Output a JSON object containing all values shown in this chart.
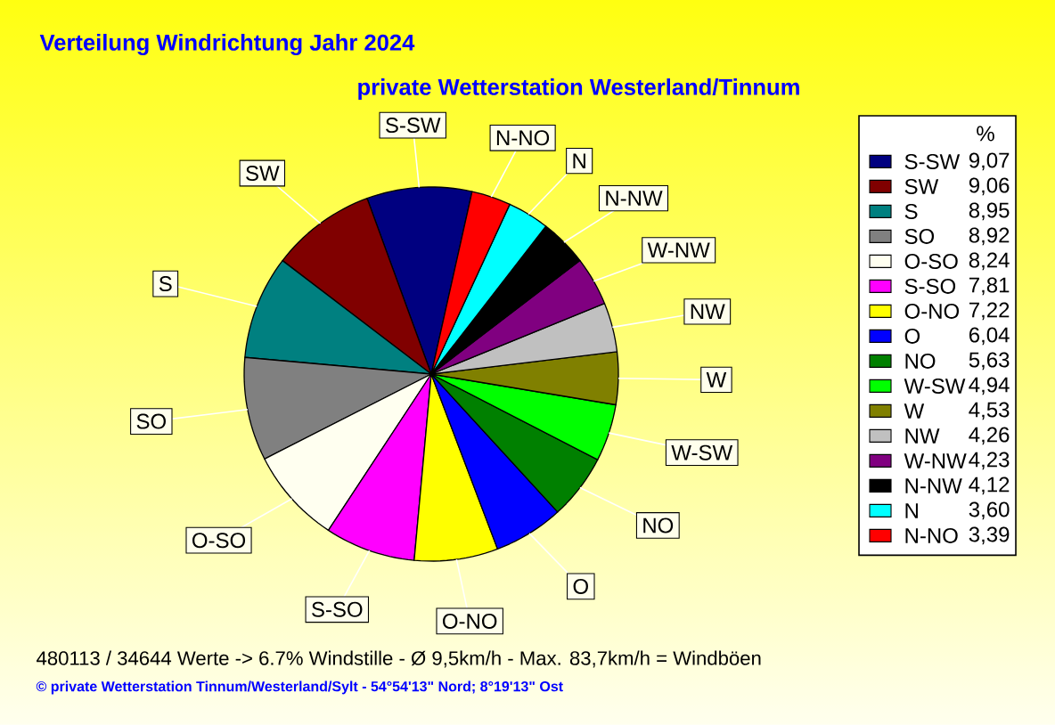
{
  "chart_data": {
    "type": "pie",
    "title": "Verteilung Windrichtung Jahr 2024",
    "subtitle": "private Wetterstation Westerland/Tinnum",
    "legend_title": "%",
    "categories": [
      "S-SW",
      "SW",
      "S",
      "SO",
      "O-SO",
      "S-SO",
      "O-NO",
      "O",
      "NO",
      "W-SW",
      "W",
      "NW",
      "W-NW",
      "N-NW",
      "N",
      "N-NO"
    ],
    "values": [
      9.07,
      9.06,
      8.95,
      8.92,
      8.24,
      7.81,
      7.22,
      6.04,
      5.63,
      4.94,
      4.53,
      4.26,
      4.23,
      4.12,
      3.6,
      3.39
    ],
    "value_labels": [
      "9,07",
      "9,06",
      "8,95",
      "8,92",
      "8,24",
      "7,81",
      "7,22",
      "6,04",
      "5,63",
      "4,94",
      "4,53",
      "4,26",
      "4,23",
      "4,12",
      "3,60",
      "3,39"
    ],
    "colors": [
      "#000080",
      "#800000",
      "#008080",
      "#808080",
      "#fffff0",
      "#ff00ff",
      "#ffff00",
      "#0000ff",
      "#008000",
      "#00ff00",
      "#808000",
      "#c0c0c0",
      "#800080",
      "#000000",
      "#00ffff",
      "#ff0000"
    ],
    "legend": "right",
    "annotations": [
      "480113 / 34644 Werte -> 6.7% Windstille - Ø 9,5km/h - Max. 83,7km/h = Windböen",
      "© private Wetterstation Tinnum/Westerland/Sylt - 54°54'13\" Nord; 8°19'13\" Ost"
    ]
  }
}
